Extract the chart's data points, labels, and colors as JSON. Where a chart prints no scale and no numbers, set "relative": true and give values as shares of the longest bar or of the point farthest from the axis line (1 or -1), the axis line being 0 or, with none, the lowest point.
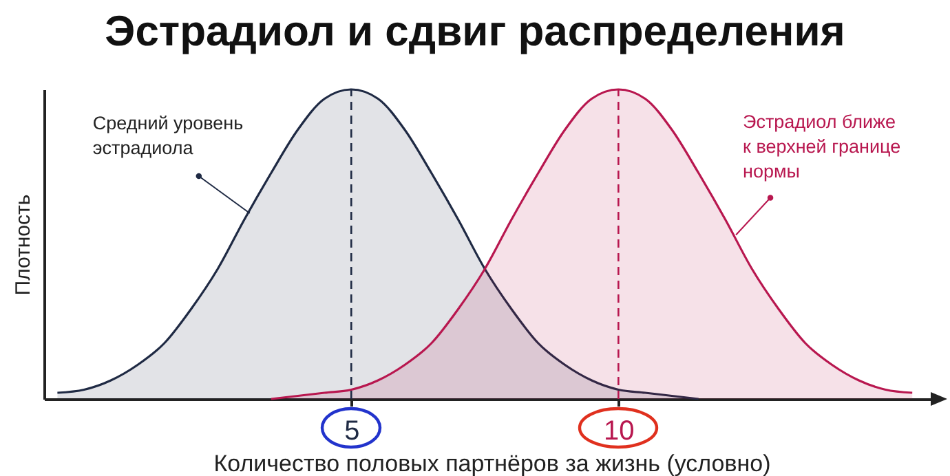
{
  "chart_data": {
    "type": "area",
    "title": "Эстрадиол и сдвиг распределения",
    "xlabel": "Количество половых партнёров за жизнь (условно)",
    "ylabel": "Плотность",
    "relative": true,
    "xlim": [
      -0.75,
      16
    ],
    "xticks": [
      5,
      10
    ],
    "grid": false,
    "marker": "none",
    "line_style": "solid",
    "series": [
      {
        "color": "#1f2a44",
        "x": [
          -0.5,
          0,
          0.5,
          1,
          1.5,
          2,
          2.5,
          3,
          3.5,
          4,
          4.5,
          5,
          5.5,
          6,
          6.5,
          7,
          7.5,
          8,
          8.5,
          9,
          9.5,
          10,
          10.5,
          11,
          11.5
        ],
        "values": [
          0.02,
          0.03,
          0.06,
          0.11,
          0.18,
          0.29,
          0.42,
          0.58,
          0.73,
          0.87,
          0.97,
          1,
          0.97,
          0.87,
          0.73,
          0.58,
          0.42,
          0.29,
          0.18,
          0.11,
          0.06,
          0.03,
          0.02,
          0.01,
          0.0
        ]
      },
      {
        "color": "#b8174f",
        "x": [
          3.5,
          4,
          4.5,
          5,
          5.5,
          6,
          6.5,
          7,
          7.5,
          8,
          8.5,
          9,
          9.5,
          10,
          10.5,
          11,
          11.5,
          12,
          12.5,
          13,
          13.5,
          14,
          14.5,
          15,
          15.5
        ],
        "values": [
          0.0,
          0.01,
          0.02,
          0.03,
          0.06,
          0.11,
          0.18,
          0.29,
          0.42,
          0.58,
          0.73,
          0.87,
          0.97,
          1,
          0.97,
          0.87,
          0.73,
          0.58,
          0.42,
          0.29,
          0.18,
          0.11,
          0.06,
          0.03,
          0.02
        ]
      }
    ],
    "ref_lines": [
      {
        "axis": "x",
        "value": 5,
        "color": "#1f2a44",
        "line_style": "dashed"
      },
      {
        "axis": "x",
        "value": 10,
        "color": "#b8174f",
        "line_style": "dashed"
      }
    ],
    "annotations": [
      {
        "text": "Средний уровень\nэстрадиола",
        "x": 3.1,
        "y": 0.6
      },
      {
        "text": "Эстрадиол ближе\nк верхней границе\nнормы",
        "x": 12.2,
        "y": 0.53
      }
    ]
  }
}
